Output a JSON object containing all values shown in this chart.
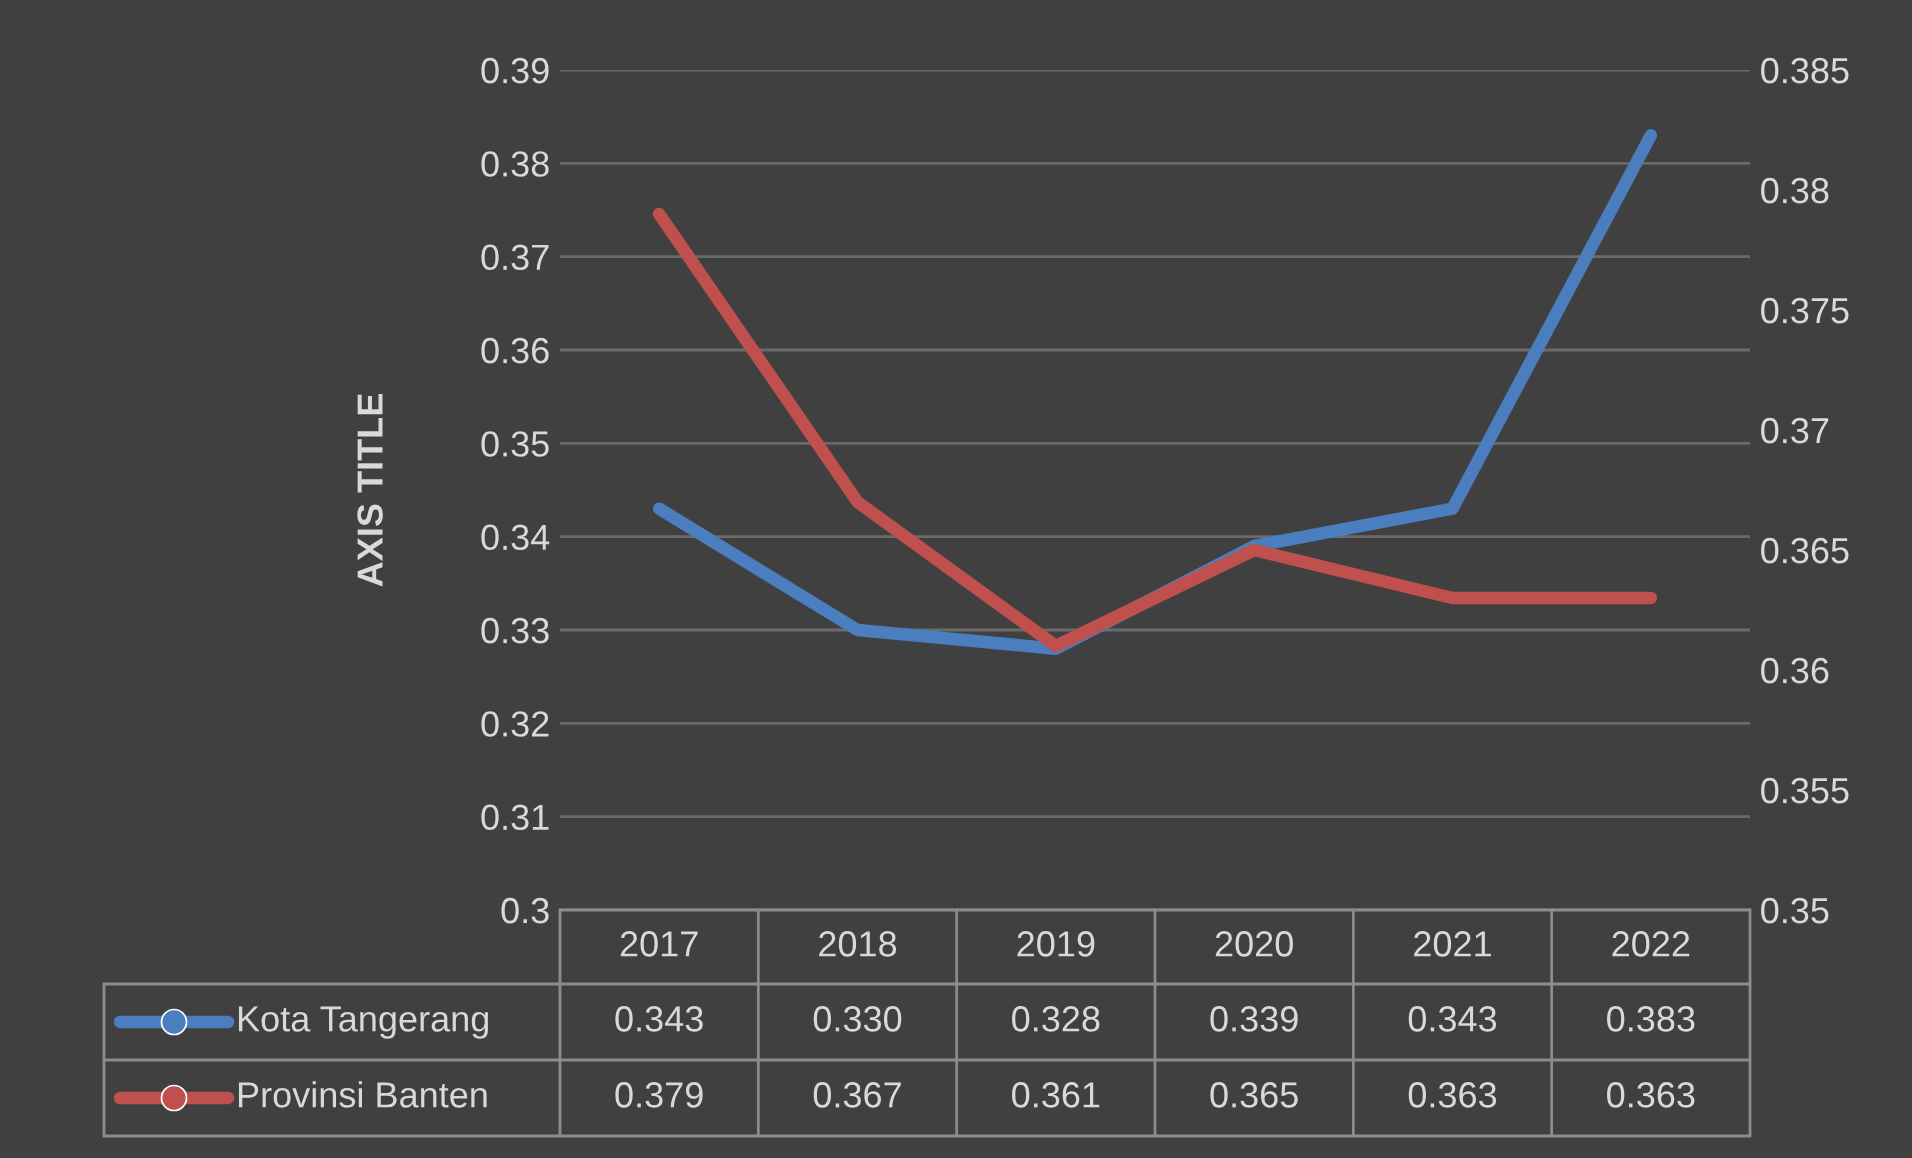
{
  "chart_data": {
    "type": "line",
    "ylabel": "AXIS TITLE",
    "categories": [
      "2017",
      "2018",
      "2019",
      "2020",
      "2021",
      "2022"
    ],
    "series": [
      {
        "name": "Kota Tangerang",
        "color": "#4a7ebf",
        "values": [
          0.343,
          0.33,
          0.328,
          0.339,
          0.343,
          0.383
        ],
        "value_labels": [
          "0.343",
          "0.330",
          "0.328",
          "0.339",
          "0.343",
          "0.383"
        ]
      },
      {
        "name": "Provinsi Banten",
        "color": "#c0504d",
        "axis": "y2",
        "values": [
          0.379,
          0.367,
          0.361,
          0.365,
          0.363,
          0.363
        ],
        "value_labels": [
          "0.379",
          "0.367",
          "0.361",
          "0.365",
          "0.363",
          "0.363"
        ]
      }
    ],
    "ylim": [
      0.3,
      0.39
    ],
    "yticks": [
      0.3,
      0.31,
      0.32,
      0.33,
      0.34,
      0.35,
      0.36,
      0.37,
      0.38,
      0.39
    ],
    "y2lim": [
      0.35,
      0.385
    ],
    "y2ticks": [
      0.35,
      0.355,
      0.36,
      0.365,
      0.37,
      0.375,
      0.38,
      0.385
    ],
    "grid": "y",
    "legend": "bottom"
  }
}
